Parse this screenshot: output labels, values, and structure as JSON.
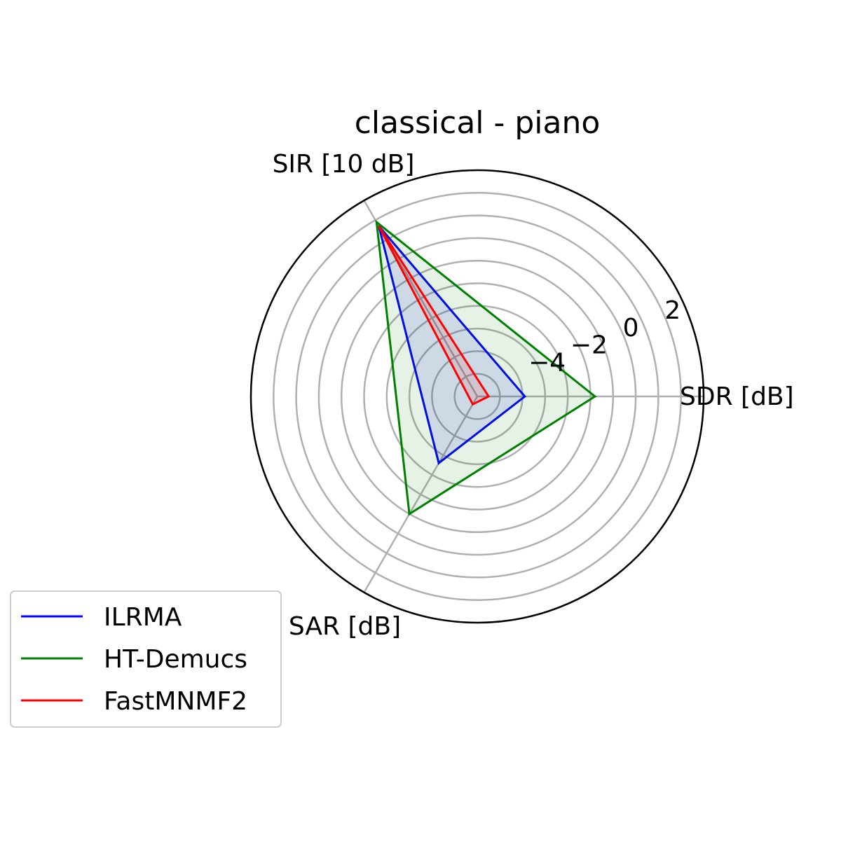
{
  "chart_data": {
    "type": "radar",
    "title": "classical - piano",
    "axes": [
      "SDR [dB]",
      "SIR [10 dB]",
      "SAR [dB]"
    ],
    "rlim": [
      -6,
      4
    ],
    "rticks": [
      -4,
      -2,
      0,
      2
    ],
    "rtick_labels": [
      "−4",
      "−2",
      "0",
      "2"
    ],
    "grid": true,
    "legend_position": "lower-left",
    "series": [
      {
        "name": "ILRMA",
        "color": "#0000ff",
        "values": [
          -3.9,
          2.7,
          -2.6
        ]
      },
      {
        "name": "HT-Demucs",
        "color": "#008000",
        "values": [
          -0.8,
          2.9,
          0.0
        ]
      },
      {
        "name": "FastMNMF2",
        "color": "#ff0000",
        "values": [
          -5.5,
          2.7,
          -5.6
        ]
      }
    ]
  }
}
